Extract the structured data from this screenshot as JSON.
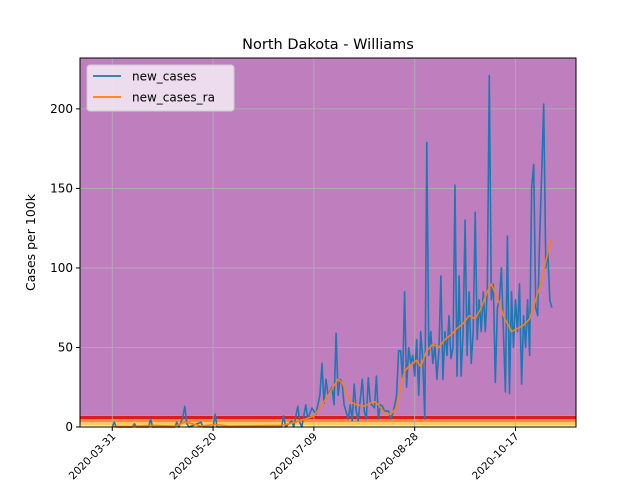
{
  "chart_data": {
    "type": "line",
    "title": "North Dakota - Williams",
    "xlabel": "",
    "ylabel": "Cases per 100k",
    "x_start": "2020-03-15",
    "x_end": "2020-11-16",
    "xlim": [
      "2020-03-15",
      "2020-11-16"
    ],
    "ylim": [
      0,
      232
    ],
    "x_ticks": [
      "2020-03-31",
      "2020-05-20",
      "2020-07-09",
      "2020-08-28",
      "2020-10-17"
    ],
    "y_ticks": [
      0,
      50,
      100,
      150,
      200
    ],
    "grid": true,
    "legend_position": "top-left",
    "background_bands": [
      {
        "from": 0,
        "to": 1,
        "color": "#ffffb2"
      },
      {
        "from": 1,
        "to": 3,
        "color": "#fecc5c"
      },
      {
        "from": 3,
        "to": 5,
        "color": "#fd8d3c"
      },
      {
        "from": 5,
        "to": 7,
        "color": "#e31a1c"
      },
      {
        "from": 7,
        "to": 232,
        "color": "#bf7fbf"
      }
    ],
    "series": [
      {
        "name": "new_cases",
        "color": "#1f77b4",
        "points": [
          [
            "2020-03-31",
            0
          ],
          [
            "2020-04-01",
            3
          ],
          [
            "2020-04-02",
            0
          ],
          [
            "2020-04-10",
            0
          ],
          [
            "2020-04-11",
            2
          ],
          [
            "2020-04-12",
            0
          ],
          [
            "2020-04-18",
            0
          ],
          [
            "2020-04-19",
            5
          ],
          [
            "2020-04-20",
            0
          ],
          [
            "2020-05-01",
            0
          ],
          [
            "2020-05-02",
            3
          ],
          [
            "2020-05-03",
            0
          ],
          [
            "2020-05-05",
            6
          ],
          [
            "2020-05-06",
            13
          ],
          [
            "2020-05-07",
            2
          ],
          [
            "2020-05-08",
            0
          ],
          [
            "2020-05-14",
            3
          ],
          [
            "2020-05-15",
            0
          ],
          [
            "2020-05-20",
            0
          ],
          [
            "2020-05-21",
            8
          ],
          [
            "2020-05-22",
            0
          ],
          [
            "2020-06-23",
            0
          ],
          [
            "2020-06-24",
            7
          ],
          [
            "2020-06-25",
            0
          ],
          [
            "2020-06-28",
            4
          ],
          [
            "2020-06-29",
            0
          ],
          [
            "2020-07-01",
            13
          ],
          [
            "2020-07-02",
            3
          ],
          [
            "2020-07-03",
            0
          ],
          [
            "2020-07-05",
            14
          ],
          [
            "2020-07-06",
            5
          ],
          [
            "2020-07-08",
            12
          ],
          [
            "2020-07-10",
            8
          ],
          [
            "2020-07-12",
            20
          ],
          [
            "2020-07-13",
            40
          ],
          [
            "2020-07-14",
            15
          ],
          [
            "2020-07-15",
            30
          ],
          [
            "2020-07-16",
            20
          ],
          [
            "2020-07-18",
            25
          ],
          [
            "2020-07-19",
            14
          ],
          [
            "2020-07-20",
            59
          ],
          [
            "2020-07-21",
            20
          ],
          [
            "2020-07-22",
            30
          ],
          [
            "2020-07-23",
            28
          ],
          [
            "2020-07-24",
            14
          ],
          [
            "2020-07-26",
            5
          ],
          [
            "2020-07-27",
            14
          ],
          [
            "2020-07-28",
            4
          ],
          [
            "2020-07-29",
            27
          ],
          [
            "2020-07-30",
            10
          ],
          [
            "2020-07-31",
            4
          ],
          [
            "2020-08-02",
            30
          ],
          [
            "2020-08-03",
            10
          ],
          [
            "2020-08-04",
            5
          ],
          [
            "2020-08-05",
            31
          ],
          [
            "2020-08-06",
            15
          ],
          [
            "2020-08-08",
            12
          ],
          [
            "2020-08-09",
            32
          ],
          [
            "2020-08-10",
            5
          ],
          [
            "2020-08-11",
            14
          ],
          [
            "2020-08-12",
            13
          ],
          [
            "2020-08-13",
            10
          ],
          [
            "2020-08-15",
            10
          ],
          [
            "2020-08-16",
            5
          ],
          [
            "2020-08-17",
            8
          ],
          [
            "2020-08-18",
            13
          ],
          [
            "2020-08-19",
            20
          ],
          [
            "2020-08-20",
            48
          ],
          [
            "2020-08-21",
            48
          ],
          [
            "2020-08-22",
            30
          ],
          [
            "2020-08-23",
            85
          ],
          [
            "2020-08-24",
            25
          ],
          [
            "2020-08-25",
            50
          ],
          [
            "2020-08-26",
            40
          ],
          [
            "2020-08-27",
            45
          ],
          [
            "2020-08-28",
            32
          ],
          [
            "2020-08-29",
            55
          ],
          [
            "2020-08-30",
            20
          ],
          [
            "2020-08-31",
            60
          ],
          [
            "2020-09-01",
            42
          ],
          [
            "2020-09-02",
            5
          ],
          [
            "2020-09-03",
            179
          ],
          [
            "2020-09-04",
            45
          ],
          [
            "2020-09-05",
            60
          ],
          [
            "2020-09-06",
            40
          ],
          [
            "2020-09-07",
            52
          ],
          [
            "2020-09-08",
            30
          ],
          [
            "2020-09-09",
            48
          ],
          [
            "2020-09-10",
            95
          ],
          [
            "2020-09-11",
            30
          ],
          [
            "2020-09-12",
            60
          ],
          [
            "2020-09-13",
            45
          ],
          [
            "2020-09-14",
            70
          ],
          [
            "2020-09-15",
            43
          ],
          [
            "2020-09-16",
            50
          ],
          [
            "2020-09-17",
            152
          ],
          [
            "2020-09-18",
            32
          ],
          [
            "2020-09-19",
            95
          ],
          [
            "2020-09-20",
            32
          ],
          [
            "2020-09-21",
            60
          ],
          [
            "2020-09-22",
            130
          ],
          [
            "2020-09-23",
            45
          ],
          [
            "2020-09-24",
            85
          ],
          [
            "2020-09-25",
            40
          ],
          [
            "2020-09-26",
            60
          ],
          [
            "2020-09-27",
            135
          ],
          [
            "2020-09-28",
            55
          ],
          [
            "2020-09-29",
            80
          ],
          [
            "2020-09-30",
            60
          ],
          [
            "2020-10-01",
            85
          ],
          [
            "2020-10-02",
            60
          ],
          [
            "2020-10-03",
            87
          ],
          [
            "2020-10-04",
            221
          ],
          [
            "2020-10-05",
            80
          ],
          [
            "2020-10-06",
            90
          ],
          [
            "2020-10-07",
            28
          ],
          [
            "2020-10-08",
            75
          ],
          [
            "2020-10-09",
            80
          ],
          [
            "2020-10-10",
            100
          ],
          [
            "2020-10-11",
            60
          ],
          [
            "2020-10-12",
            22
          ],
          [
            "2020-10-13",
            120
          ],
          [
            "2020-10-14",
            21
          ],
          [
            "2020-10-15",
            85
          ],
          [
            "2020-10-16",
            50
          ],
          [
            "2020-10-17",
            80
          ],
          [
            "2020-10-18",
            60
          ],
          [
            "2020-10-19",
            90
          ],
          [
            "2020-10-20",
            27
          ],
          [
            "2020-10-21",
            70
          ],
          [
            "2020-10-22",
            50
          ],
          [
            "2020-10-23",
            80
          ],
          [
            "2020-10-24",
            45
          ],
          [
            "2020-10-25",
            150
          ],
          [
            "2020-10-26",
            165
          ],
          [
            "2020-10-27",
            75
          ],
          [
            "2020-10-28",
            70
          ],
          [
            "2020-10-29",
            120
          ],
          [
            "2020-10-30",
            160
          ],
          [
            "2020-10-31",
            203
          ],
          [
            "2020-11-01",
            100
          ],
          [
            "2020-11-02",
            110
          ],
          [
            "2020-11-03",
            80
          ],
          [
            "2020-11-04",
            75
          ]
        ]
      },
      {
        "name": "new_cases_ra",
        "color": "#ff7f0e",
        "points": [
          [
            "2020-03-31",
            0
          ],
          [
            "2020-04-01",
            0.4
          ],
          [
            "2020-04-10",
            0.3
          ],
          [
            "2020-04-20",
            1
          ],
          [
            "2020-05-01",
            0.5
          ],
          [
            "2020-05-06",
            3
          ],
          [
            "2020-05-10",
            2
          ],
          [
            "2020-05-14",
            0.5
          ],
          [
            "2020-05-21",
            1.5
          ],
          [
            "2020-05-28",
            0.5
          ],
          [
            "2020-06-23",
            1
          ],
          [
            "2020-06-30",
            3
          ],
          [
            "2020-07-05",
            5
          ],
          [
            "2020-07-09",
            7
          ],
          [
            "2020-07-12",
            12
          ],
          [
            "2020-07-15",
            18
          ],
          [
            "2020-07-18",
            24
          ],
          [
            "2020-07-21",
            30
          ],
          [
            "2020-07-23",
            28
          ],
          [
            "2020-07-25",
            22
          ],
          [
            "2020-07-27",
            16
          ],
          [
            "2020-07-30",
            14
          ],
          [
            "2020-08-03",
            13
          ],
          [
            "2020-08-06",
            15
          ],
          [
            "2020-08-08",
            16
          ],
          [
            "2020-08-10",
            14
          ],
          [
            "2020-08-13",
            9
          ],
          [
            "2020-08-16",
            8
          ],
          [
            "2020-08-19",
            12
          ],
          [
            "2020-08-21",
            25
          ],
          [
            "2020-08-23",
            35
          ],
          [
            "2020-08-25",
            38
          ],
          [
            "2020-08-27",
            40
          ],
          [
            "2020-08-29",
            42
          ],
          [
            "2020-08-31",
            38
          ],
          [
            "2020-09-03",
            48
          ],
          [
            "2020-09-06",
            52
          ],
          [
            "2020-09-09",
            50
          ],
          [
            "2020-09-12",
            55
          ],
          [
            "2020-09-15",
            58
          ],
          [
            "2020-09-18",
            62
          ],
          [
            "2020-09-21",
            65
          ],
          [
            "2020-09-24",
            70
          ],
          [
            "2020-09-27",
            68
          ],
          [
            "2020-09-30",
            75
          ],
          [
            "2020-10-03",
            85
          ],
          [
            "2020-10-05",
            90
          ],
          [
            "2020-10-07",
            84
          ],
          [
            "2020-10-09",
            78
          ],
          [
            "2020-10-11",
            70
          ],
          [
            "2020-10-13",
            65
          ],
          [
            "2020-10-15",
            60
          ],
          [
            "2020-10-18",
            62
          ],
          [
            "2020-10-21",
            64
          ],
          [
            "2020-10-24",
            68
          ],
          [
            "2020-10-27",
            80
          ],
          [
            "2020-10-30",
            92
          ],
          [
            "2020-11-02",
            110
          ],
          [
            "2020-11-04",
            118
          ]
        ]
      }
    ]
  }
}
